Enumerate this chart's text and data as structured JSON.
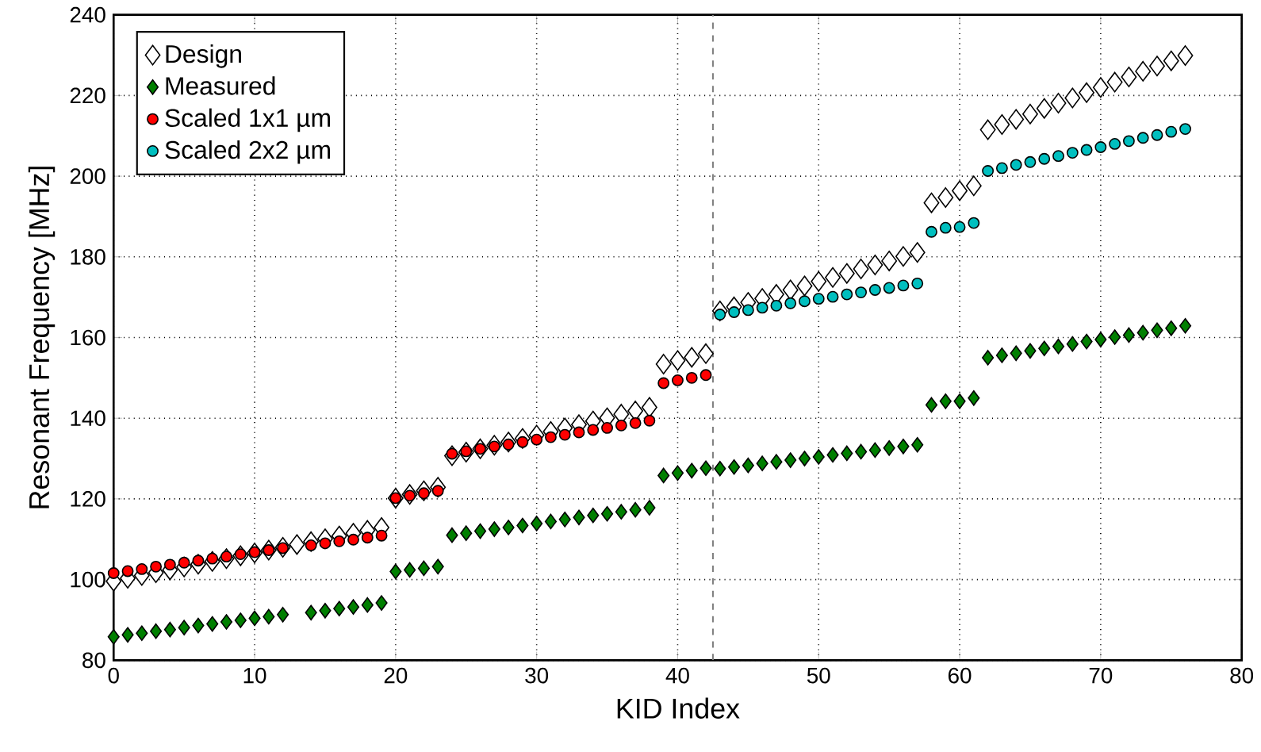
{
  "chart_data": {
    "type": "scatter",
    "xlabel": "KID Index",
    "ylabel": "Resonant Frequency [MHz]",
    "x": [
      0,
      1,
      2,
      3,
      4,
      5,
      6,
      7,
      8,
      9,
      10,
      11,
      12,
      13,
      14,
      15,
      16,
      17,
      18,
      19,
      20,
      21,
      22,
      23,
      24,
      25,
      26,
      27,
      28,
      29,
      30,
      31,
      32,
      33,
      34,
      35,
      36,
      37,
      38,
      39,
      40,
      41,
      42,
      43,
      44,
      45,
      46,
      47,
      48,
      49,
      50,
      51,
      52,
      53,
      54,
      55,
      56,
      57,
      58,
      59,
      60,
      61,
      62,
      63,
      64,
      65,
      66,
      67,
      68,
      69,
      70,
      71,
      72,
      73,
      74,
      75,
      76
    ],
    "series": [
      {
        "name": "Design",
        "color": "#ffffff",
        "marker": "diamond",
        "values": [
          99.6,
          100.3,
          101.0,
          101.7,
          102.4,
          103.1,
          103.8,
          104.5,
          105.2,
          105.9,
          106.6,
          107.3,
          108.0,
          108.7,
          109.4,
          110.1,
          110.8,
          111.5,
          112.2,
          112.9,
          120.2,
          121.1,
          122.0,
          122.9,
          130.7,
          131.6,
          132.4,
          133.3,
          134.1,
          135.0,
          135.8,
          136.7,
          137.6,
          138.4,
          139.3,
          140.1,
          141.0,
          141.8,
          142.7,
          153.4,
          154.3,
          155.1,
          156.0,
          166.6,
          167.6,
          168.7,
          169.7,
          170.7,
          171.8,
          172.8,
          173.9,
          174.9,
          175.9,
          177.0,
          178.0,
          179.0,
          180.1,
          181.1,
          193.4,
          194.7,
          196.4,
          197.6,
          211.5,
          212.8,
          214.1,
          215.4,
          216.8,
          218.1,
          219.4,
          220.7,
          222.0,
          223.3,
          224.6,
          226.0,
          227.3,
          228.6,
          229.9
        ]
      },
      {
        "name": "Measured",
        "color": "#007f00",
        "marker": "diamond",
        "values": [
          85.8,
          86.3,
          86.7,
          87.2,
          87.6,
          88.1,
          88.6,
          89.0,
          89.5,
          89.9,
          90.4,
          90.8,
          91.3,
          null,
          91.8,
          92.3,
          92.8,
          93.2,
          93.7,
          94.2,
          102.0,
          102.4,
          102.8,
          103.2,
          111.0,
          111.5,
          112.0,
          112.5,
          112.9,
          113.4,
          113.9,
          114.4,
          114.9,
          115.4,
          115.9,
          116.3,
          116.8,
          117.3,
          117.8,
          125.8,
          126.4,
          127.0,
          127.6,
          127.5,
          127.9,
          128.3,
          128.8,
          129.2,
          129.6,
          130.0,
          130.4,
          130.9,
          131.3,
          131.7,
          132.1,
          132.6,
          133.0,
          133.4,
          143.3,
          144.2,
          144.2,
          145.0,
          155.0,
          155.6,
          156.1,
          156.7,
          157.3,
          157.8,
          158.4,
          159.0,
          159.5,
          160.1,
          160.6,
          161.2,
          161.8,
          162.3,
          162.9
        ]
      },
      {
        "name": "Scaled 1x1 µm",
        "color": "#ff0000",
        "marker": "circle",
        "values": [
          101.6,
          102.1,
          102.6,
          103.2,
          103.7,
          104.2,
          104.7,
          105.2,
          105.7,
          106.3,
          106.8,
          107.3,
          107.8,
          null,
          108.5,
          109.0,
          109.5,
          109.9,
          110.4,
          110.9,
          120.2,
          120.8,
          121.4,
          122.0,
          131.2,
          131.8,
          132.4,
          133.0,
          133.5,
          134.1,
          134.7,
          135.3,
          135.9,
          136.5,
          137.1,
          137.6,
          138.2,
          138.8,
          139.4,
          148.7,
          149.4,
          150.0,
          150.7,
          null,
          null,
          null,
          null,
          null,
          null,
          null,
          null,
          null,
          null,
          null,
          null,
          null,
          null,
          null,
          null,
          null,
          null,
          null,
          null,
          null,
          null,
          null,
          null,
          null,
          null,
          null,
          null,
          null,
          null,
          null,
          null,
          null,
          null
        ]
      },
      {
        "name": "Scaled 2x2 µm",
        "color": "#00bfbf",
        "marker": "circle",
        "values": [
          null,
          null,
          null,
          null,
          null,
          null,
          null,
          null,
          null,
          null,
          null,
          null,
          null,
          null,
          null,
          null,
          null,
          null,
          null,
          null,
          null,
          null,
          null,
          null,
          null,
          null,
          null,
          null,
          null,
          null,
          null,
          null,
          null,
          null,
          null,
          null,
          null,
          null,
          null,
          null,
          null,
          null,
          null,
          165.7,
          166.3,
          166.8,
          167.4,
          167.9,
          168.5,
          169.0,
          169.6,
          170.1,
          170.7,
          171.2,
          171.8,
          172.3,
          172.9,
          173.4,
          186.2,
          187.2,
          187.4,
          188.4,
          201.3,
          202.0,
          202.8,
          203.5,
          204.3,
          205.0,
          205.8,
          206.5,
          207.2,
          208.0,
          208.7,
          209.5,
          210.2,
          211.0,
          211.7
        ]
      }
    ],
    "xlim": [
      0,
      80
    ],
    "xticks": [
      0,
      10,
      20,
      30,
      40,
      50,
      60,
      70,
      80
    ],
    "ylim": [
      80,
      240
    ],
    "yticks": [
      80,
      100,
      120,
      140,
      160,
      180,
      200,
      220,
      240
    ],
    "ref_lines": [
      {
        "axis": "x",
        "value": 42.5,
        "color": "#808080",
        "line_style": "dashed"
      }
    ],
    "grid": true,
    "legend": "top left"
  }
}
